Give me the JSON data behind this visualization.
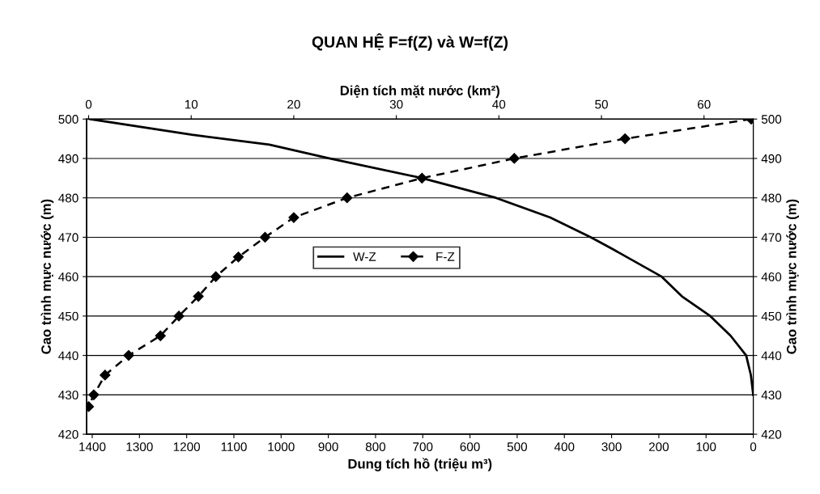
{
  "chart_data": {
    "type": "line",
    "title": "QUAN HỆ F=f(Z) và W=f(Z)",
    "xlabel": "Dung tích hồ (triệu m³)",
    "x2label": "Diện tích mặt nước (km²)",
    "ylabel": "Cao trình mực nước (m)",
    "y2label": "Cao trình mực nước (m)",
    "xlim": [
      1412,
      0
    ],
    "xticks": [
      1400,
      1300,
      1200,
      1100,
      1000,
      900,
      800,
      700,
      600,
      500,
      400,
      300,
      200,
      100,
      0
    ],
    "x2lim": [
      -0.2,
      64.8
    ],
    "x2ticks": [
      0,
      10,
      20,
      30,
      40,
      50,
      60
    ],
    "ylim": [
      420,
      500
    ],
    "yticks": [
      420,
      430,
      440,
      450,
      460,
      470,
      480,
      490,
      500
    ],
    "y2lim": [
      420,
      500
    ],
    "y2ticks": [
      420,
      430,
      440,
      450,
      460,
      470,
      480,
      490,
      500
    ],
    "grid": "y",
    "legend": "center",
    "series": [
      {
        "name": "W-Z",
        "color": "#000000",
        "marker": "none",
        "line_style": "solid",
        "x": [
          1405,
          1189,
          1025,
          898,
          701,
          545,
          430,
          344,
          298,
          194,
          151,
          91,
          48,
          15,
          5,
          0
        ],
        "values": [
          500,
          496,
          493.5,
          490,
          485,
          480,
          475,
          470,
          467,
          460,
          455,
          450,
          445,
          440,
          435,
          430
        ]
      },
      {
        "name": "F-Z",
        "color": "#000000",
        "axis": "x2",
        "marker": "diamond",
        "line_style": "dashed",
        "x": [
          64.6,
          52.3,
          41.5,
          32.5,
          25.2,
          20.0,
          17.2,
          14.6,
          12.4,
          10.7,
          8.8,
          7.0,
          3.9,
          1.6,
          0.5,
          0
        ],
        "values": [
          500,
          495,
          490,
          485,
          480,
          475,
          470,
          465,
          460,
          455,
          450,
          445,
          440,
          435,
          430,
          427
        ]
      }
    ]
  }
}
